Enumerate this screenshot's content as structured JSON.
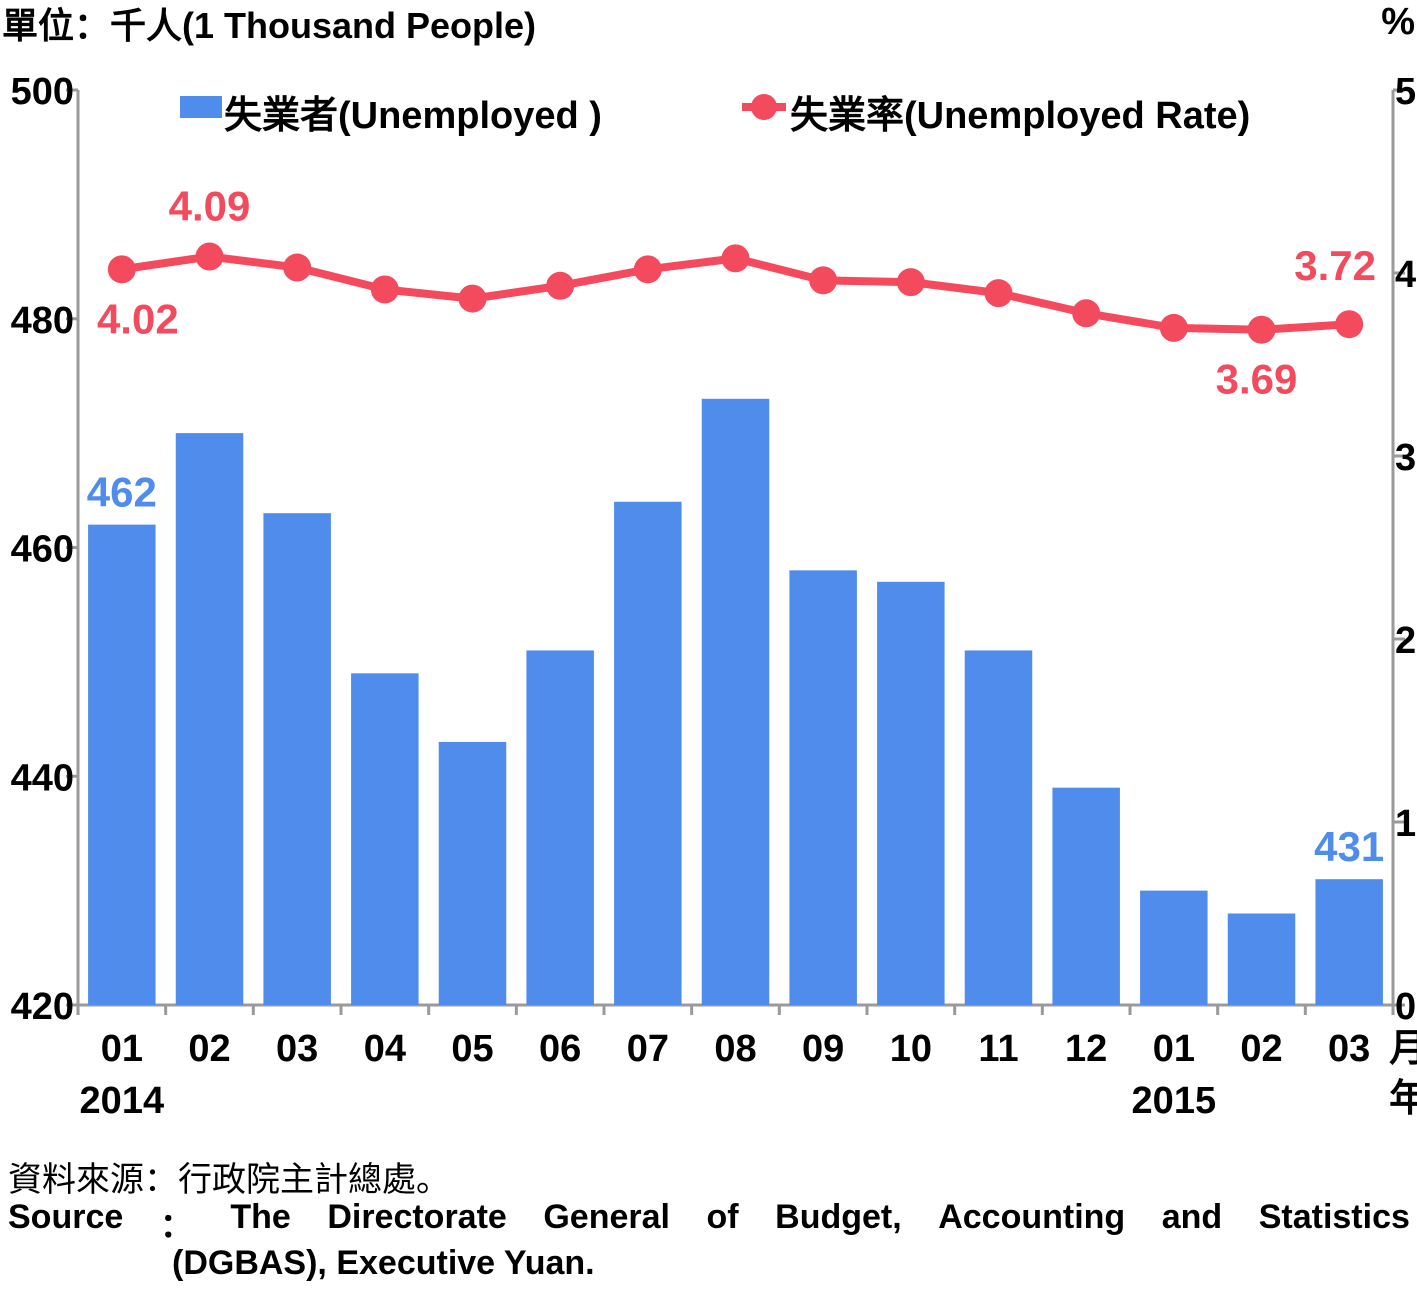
{
  "chart_data": {
    "type": "bar+line",
    "unit_label": "單位：千人(1 Thousand People)",
    "right_unit_label": "%",
    "categories": [
      "01",
      "02",
      "03",
      "04",
      "05",
      "06",
      "07",
      "08",
      "09",
      "10",
      "11",
      "12",
      "01",
      "02",
      "03"
    ],
    "month_suffix": "月",
    "year_suffix": "年",
    "year_labels": [
      {
        "index": 0,
        "label": "2014"
      },
      {
        "index": 12,
        "label": "2015"
      }
    ],
    "series": [
      {
        "name": "失業者(Unemployed )",
        "type": "bar",
        "axis": "left",
        "color": "#4F8CEB",
        "values": [
          462,
          470,
          463,
          449,
          443,
          451,
          464,
          473,
          458,
          457,
          451,
          439,
          430,
          428,
          431
        ]
      },
      {
        "name": "失業率(Unemployed Rate)",
        "type": "line",
        "axis": "right",
        "color": "#F34A5E",
        "values": [
          4.02,
          4.09,
          4.03,
          3.91,
          3.86,
          3.93,
          4.02,
          4.08,
          3.96,
          3.95,
          3.89,
          3.78,
          3.7,
          3.69,
          3.72
        ]
      }
    ],
    "ylim_left": [
      420,
      500
    ],
    "yticks_left": [
      420,
      440,
      460,
      480,
      500
    ],
    "ylim_right": [
      0,
      5
    ],
    "yticks_right": [
      0,
      1,
      2,
      3,
      4,
      5
    ],
    "annotations": [
      {
        "series": 0,
        "index": 0,
        "text": "462"
      },
      {
        "series": 0,
        "index": 14,
        "text": "431"
      },
      {
        "series": 1,
        "index": 0,
        "text": "4.02"
      },
      {
        "series": 1,
        "index": 1,
        "text": "4.09"
      },
      {
        "series": 1,
        "index": 13,
        "text": "3.69"
      },
      {
        "series": 1,
        "index": 14,
        "text": "3.72"
      }
    ],
    "legend_position": "top"
  },
  "footer": {
    "source_zh": "資料來源：行政院主計總處。",
    "source_en_words": [
      "Source",
      "：",
      "The",
      "Directorate",
      "General",
      "of",
      "Budget,",
      "Accounting",
      "and",
      "Statistics"
    ],
    "source_en_line2": "(DGBAS), Executive Yuan."
  }
}
